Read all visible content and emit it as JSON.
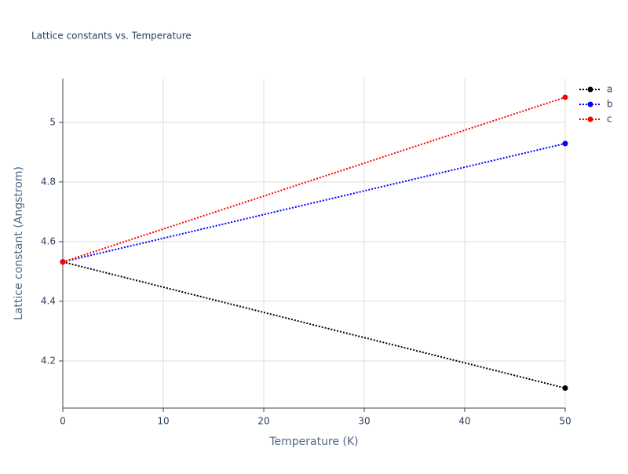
{
  "chart_data": {
    "type": "line",
    "title": "Lattice constants vs. Temperature",
    "x_label": "Temperature (K)",
    "y_label": "Lattice constant (Angstrom)",
    "x": [
      0,
      50
    ],
    "series": [
      {
        "name": "a",
        "color": "#000000",
        "values": [
          4.532,
          4.109
        ]
      },
      {
        "name": "b",
        "color": "#0000ff",
        "values": [
          4.532,
          4.929
        ]
      },
      {
        "name": "c",
        "color": "#ff0000",
        "values": [
          4.532,
          5.084
        ]
      }
    ],
    "xlim": [
      0,
      50
    ],
    "xticks": [
      0,
      10,
      20,
      30,
      40,
      50
    ],
    "ylim": [
      4.042,
      5.147
    ],
    "yticks": [
      4.2,
      4.4,
      4.6,
      4.8,
      5
    ],
    "grid": true,
    "legend": "top-right"
  }
}
